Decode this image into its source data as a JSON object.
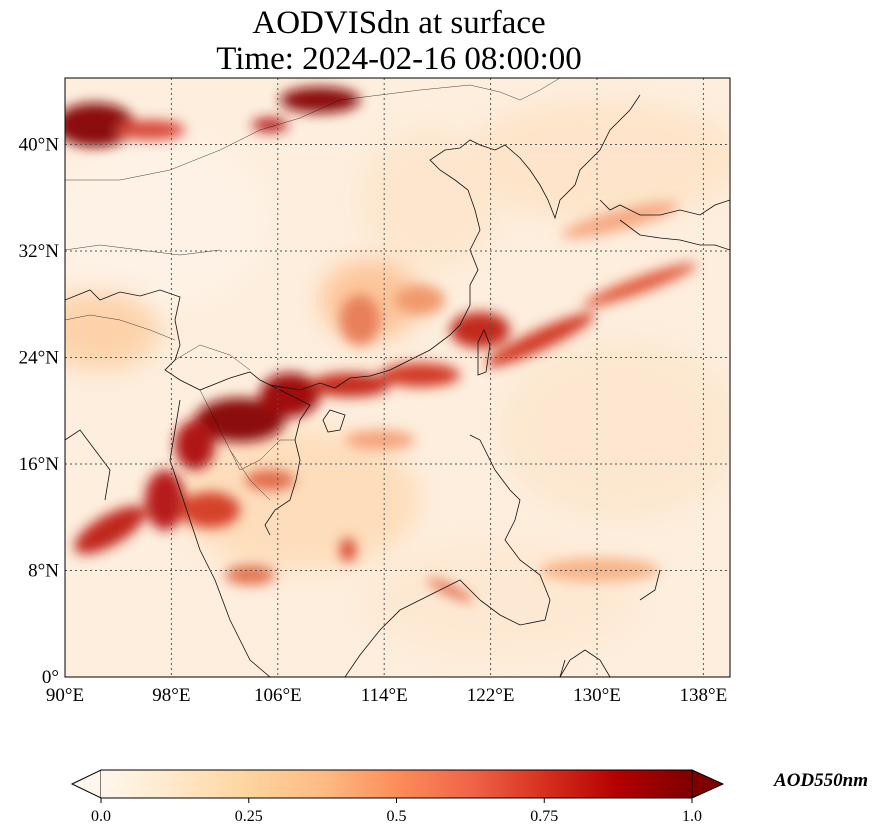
{
  "title": {
    "line1": "AODVISdn at surface",
    "line2": "Time: 2024-02-16 08:00:00"
  },
  "map": {
    "variable": "AODVISdn",
    "level": "surface",
    "projection": "PlateCarree",
    "lon_range": [
      90,
      140
    ],
    "lat_range": [
      0,
      45
    ],
    "colormap": "OrRd",
    "gridlines": "dotted",
    "x_ticks": [
      {
        "value": 90,
        "label": "90°E"
      },
      {
        "value": 98,
        "label": "98°E"
      },
      {
        "value": 106,
        "label": "106°E"
      },
      {
        "value": 114,
        "label": "114°E"
      },
      {
        "value": 122,
        "label": "122°E"
      },
      {
        "value": 130,
        "label": "130°E"
      },
      {
        "value": 138,
        "label": "138°E"
      }
    ],
    "y_ticks": [
      {
        "value": 0,
        "label": "0°"
      },
      {
        "value": 8,
        "label": "8°N"
      },
      {
        "value": 16,
        "label": "16°N"
      },
      {
        "value": 24,
        "label": "24°N"
      },
      {
        "value": 32,
        "label": "32°N"
      },
      {
        "value": 40,
        "label": "40°N"
      }
    ]
  },
  "colorbar": {
    "label": "AOD550nm",
    "min": 0.0,
    "max": 1.0,
    "extend": "both",
    "ticks": [
      {
        "value": 0.0,
        "label": "0.0"
      },
      {
        "value": 0.25,
        "label": "0.25"
      },
      {
        "value": 0.5,
        "label": "0.5"
      },
      {
        "value": 0.75,
        "label": "0.75"
      },
      {
        "value": 1.0,
        "label": "1.0"
      }
    ],
    "colors": [
      "#fff7ec",
      "#fee8c8",
      "#fdd49e",
      "#fdbb84",
      "#fc8d59",
      "#ef6548",
      "#d7301f",
      "#b30000",
      "#7f0000"
    ]
  }
}
